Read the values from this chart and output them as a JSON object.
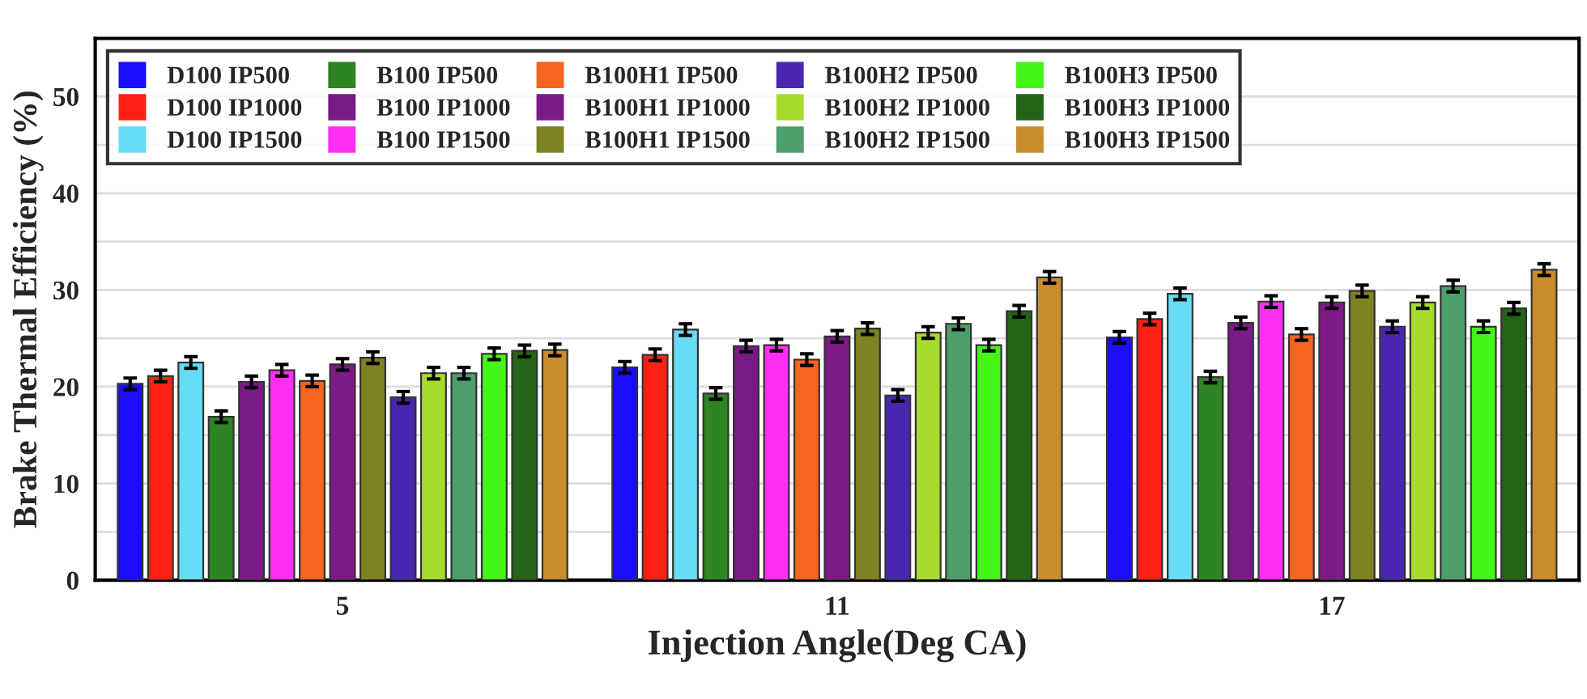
{
  "chart_data": {
    "type": "bar",
    "xlabel": "Injection Angle(Deg CA)",
    "ylabel": "Brake Thermal Efficiency (%)",
    "categories": [
      "5",
      "11",
      "17"
    ],
    "ylim": [
      0,
      56
    ],
    "yticks": [
      0,
      {
        "value": 5,
        "label": null
      },
      10,
      {
        "value": 15,
        "label": null
      },
      20,
      {
        "value": 25,
        "label": null
      },
      30,
      {
        "value": 35,
        "label": null
      },
      40,
      {
        "value": 45,
        "label": null
      },
      50
    ],
    "grid": "y",
    "legend": "top left",
    "series": [
      {
        "name": "D100 IP500",
        "color": "#1a0dff",
        "values": [
          20.3,
          22.0,
          25.1
        ],
        "errors": [
          0.6,
          0.6,
          0.6
        ]
      },
      {
        "name": "D100 IP1000",
        "color": "#ff2015",
        "values": [
          21.1,
          23.3,
          27.0
        ],
        "errors": [
          0.6,
          0.6,
          0.6
        ]
      },
      {
        "name": "D100 IP1500",
        "color": "#66dcf5",
        "values": [
          22.5,
          25.9,
          29.6
        ],
        "errors": [
          0.6,
          0.6,
          0.6
        ]
      },
      {
        "name": "B100 IP500",
        "color": "#2e8322",
        "values": [
          16.9,
          19.3,
          21.0
        ],
        "errors": [
          0.6,
          0.6,
          0.6
        ]
      },
      {
        "name": "B100 IP1000",
        "color": "#7a1a86",
        "values": [
          20.5,
          24.2,
          26.6
        ],
        "errors": [
          0.6,
          0.6,
          0.6
        ]
      },
      {
        "name": "B100 IP1500",
        "color": "#ff2ef5",
        "values": [
          21.7,
          24.3,
          28.8
        ],
        "errors": [
          0.6,
          0.6,
          0.6
        ]
      },
      {
        "name": "B100H1 IP500",
        "color": "#f5651f",
        "values": [
          20.6,
          22.8,
          25.4
        ],
        "errors": [
          0.6,
          0.6,
          0.6
        ]
      },
      {
        "name": "B100H1 IP1000",
        "color": "#7e1a88",
        "values": [
          22.3,
          25.2,
          28.7
        ],
        "errors": [
          0.6,
          0.6,
          0.6
        ]
      },
      {
        "name": "B100H1 IP1500",
        "color": "#7d8222",
        "values": [
          23.0,
          26.0,
          29.9
        ],
        "errors": [
          0.6,
          0.6,
          0.6
        ]
      },
      {
        "name": "B100H2 IP500",
        "color": "#4a25b0",
        "values": [
          18.9,
          19.1,
          26.2
        ],
        "errors": [
          0.6,
          0.6,
          0.6
        ]
      },
      {
        "name": "B100H2 IP1000",
        "color": "#a8dc2c",
        "values": [
          21.4,
          25.6,
          28.7
        ],
        "errors": [
          0.6,
          0.6,
          0.6
        ]
      },
      {
        "name": "B100H2 IP1500",
        "color": "#4d9e6c",
        "values": [
          21.4,
          26.5,
          30.4
        ],
        "errors": [
          0.6,
          0.6,
          0.6
        ]
      },
      {
        "name": "B100H3 IP500",
        "color": "#45f51a",
        "values": [
          23.4,
          24.3,
          26.2
        ],
        "errors": [
          0.6,
          0.6,
          0.6
        ]
      },
      {
        "name": "B100H3 IP1000",
        "color": "#236417",
        "values": [
          23.7,
          27.8,
          28.1
        ],
        "errors": [
          0.6,
          0.6,
          0.6
        ]
      },
      {
        "name": "B100H3 IP1500",
        "color": "#c98d2c",
        "values": [
          23.8,
          31.3,
          32.1
        ],
        "errors": [
          0.6,
          0.6,
          0.6
        ]
      }
    ]
  }
}
